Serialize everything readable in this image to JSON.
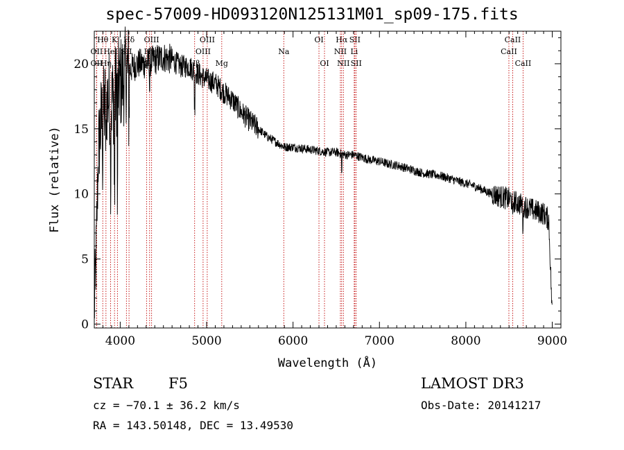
{
  "chart_data": {
    "type": "line",
    "title": "spec-57009-HD093120N125131M01_sp09-175.fits",
    "xlabel": "Wavelength (Å)",
    "ylabel": "Flux (relative)",
    "xlim": [
      3700,
      9100
    ],
    "ylim": [
      -0.3,
      22.5
    ],
    "xticks": [
      4000,
      5000,
      6000,
      7000,
      8000,
      9000
    ],
    "yticks": [
      0,
      5,
      10,
      15,
      20
    ],
    "spectrum_profile": {
      "x": [
        3700,
        3720,
        3750,
        3780,
        3800,
        3830,
        3870,
        3900,
        3950,
        4000,
        4050,
        4100,
        4200,
        4300,
        4400,
        4500,
        4600,
        4700,
        4800,
        4900,
        5000,
        5100,
        5200,
        5300,
        5400,
        5500,
        5600,
        5700,
        5800,
        5900,
        6000,
        6100,
        6200,
        6300,
        6400,
        6500,
        6600,
        6700,
        6800,
        6900,
        7000,
        7100,
        7200,
        7300,
        7400,
        7500,
        7600,
        7700,
        7800,
        7900,
        8000,
        8100,
        8200,
        8300,
        8400,
        8500,
        8600,
        8700,
        8800,
        8900,
        8960,
        9000
      ],
      "y": [
        1.0,
        5.0,
        14.0,
        15.5,
        16.0,
        17.0,
        17.5,
        17.0,
        18.0,
        18.5,
        19.0,
        19.5,
        20.0,
        20.0,
        20.3,
        20.5,
        20.3,
        19.8,
        19.8,
        19.2,
        18.8,
        18.5,
        17.8,
        17.2,
        16.3,
        15.6,
        15.0,
        14.4,
        14.0,
        13.6,
        13.6,
        13.5,
        13.4,
        13.3,
        13.2,
        13.2,
        13.0,
        13.0,
        12.8,
        12.6,
        12.5,
        12.3,
        12.2,
        12.0,
        11.8,
        11.6,
        11.5,
        11.4,
        11.2,
        11.0,
        10.8,
        10.6,
        10.3,
        10.0,
        9.8,
        9.6,
        9.3,
        9.0,
        8.7,
        8.5,
        8.0,
        0.5
      ]
    },
    "spectral_lines": [
      {
        "label": "Hθ",
        "x": 3798,
        "row": 0
      },
      {
        "label": "OII",
        "x": 3727,
        "row": 1
      },
      {
        "label": "OII",
        "x": 3727,
        "row": 2
      },
      {
        "label": "K",
        "x": 3934,
        "row": 0
      },
      {
        "label": "HeI",
        "x": 3889,
        "row": 1
      },
      {
        "label": "Hη",
        "x": 3835,
        "row": 2
      },
      {
        "label": "Hδ",
        "x": 4102,
        "row": 0
      },
      {
        "label": "SII",
        "x": 4072,
        "row": 1
      },
      {
        "label": "H",
        "x": 3968,
        "row": 2
      },
      {
        "label": "OIII",
        "x": 4363,
        "row": 0
      },
      {
        "label": "Hγ",
        "x": 4340,
        "row": 1
      },
      {
        "label": "G",
        "x": 4305,
        "row": 2
      },
      {
        "label": "OIII",
        "x": 5007,
        "row": 0
      },
      {
        "label": "OIII",
        "x": 4959,
        "row": 1
      },
      {
        "label": "Hβ",
        "x": 4861,
        "row": 2
      },
      {
        "label": "Mg",
        "x": 5175,
        "row": 2
      },
      {
        "label": "Na",
        "x": 5893,
        "row": 1
      },
      {
        "label": "OI",
        "x": 6300,
        "row": 0
      },
      {
        "label": "OI",
        "x": 6364,
        "row": 2
      },
      {
        "label": "Hα",
        "x": 6563,
        "row": 0
      },
      {
        "label": "NII",
        "x": 6548,
        "row": 1
      },
      {
        "label": "NII",
        "x": 6583,
        "row": 2
      },
      {
        "label": "SII",
        "x": 6716,
        "row": 0
      },
      {
        "label": "Li",
        "x": 6708,
        "row": 1
      },
      {
        "label": "SII",
        "x": 6731,
        "row": 2
      },
      {
        "label": "CaII",
        "x": 8542,
        "row": 0
      },
      {
        "label": "CaII",
        "x": 8498,
        "row": 1
      },
      {
        "label": "CaII",
        "x": 8662,
        "row": 2
      }
    ],
    "line_color": "#000000",
    "marker_color": "#c00000",
    "grid": false
  },
  "info": {
    "object_class": "STAR",
    "subclass": "F5",
    "survey": "LAMOST DR3",
    "cz": "cz = −70.1 ± 36.2 km/s",
    "obs_date": "Obs-Date: 20141217",
    "coords": "RA = 143.50148, DEC =  13.49530"
  }
}
